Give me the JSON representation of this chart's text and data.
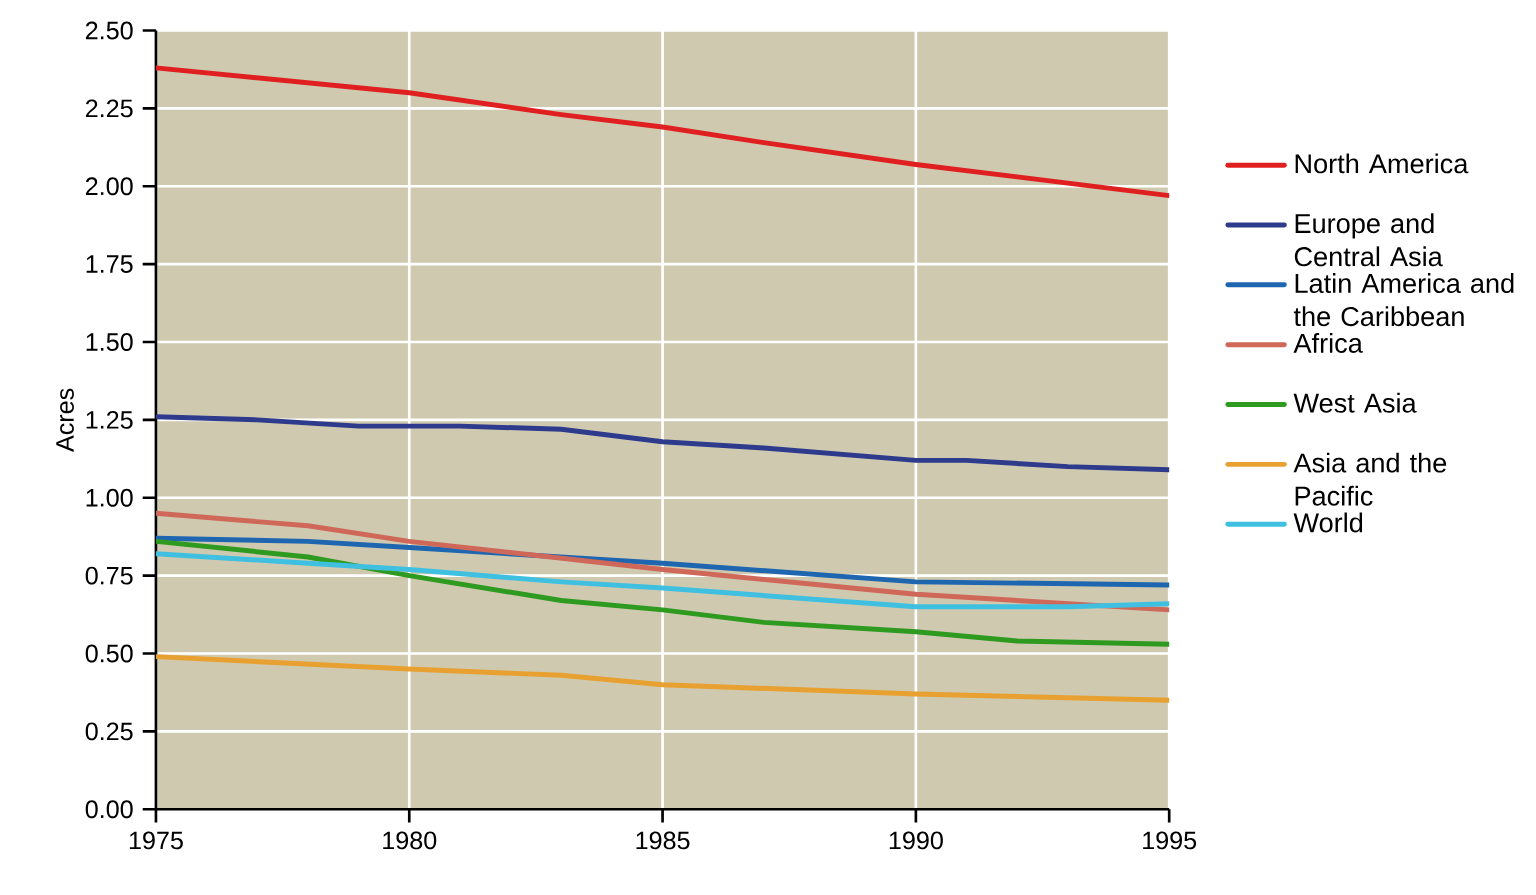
{
  "chart_data": {
    "type": "line",
    "ylabel": "Acres",
    "xlim": [
      1975,
      1995
    ],
    "xticks": [
      1975,
      1980,
      1985,
      1990,
      1995
    ],
    "ylim": [
      0,
      2.5
    ],
    "yticks": [
      {
        "value": 0,
        "label": "0.00"
      },
      {
        "value": 0.25,
        "label": "0.25"
      },
      {
        "value": 0.5,
        "label": "0.50"
      },
      {
        "value": 0.75,
        "label": "0.75"
      },
      {
        "value": 1,
        "label": "1.00"
      },
      {
        "value": 1.25,
        "label": "1.25"
      },
      {
        "value": 1.5,
        "label": "1.50"
      },
      {
        "value": 1.75,
        "label": "1.75"
      },
      {
        "value": 2,
        "label": "2.00"
      },
      {
        "value": 2.25,
        "label": "2.25"
      },
      {
        "value": 2.5,
        "label": "2.50"
      }
    ],
    "grid": true,
    "legend": "right",
    "marker": "none",
    "line_style": "solid",
    "series": [
      {
        "name": "North America",
        "color": "#e02020",
        "x": [
          1975,
          1980,
          1983,
          1985,
          1987,
          1990,
          1992,
          1995
        ],
        "values": [
          2.38,
          2.3,
          2.23,
          2.19,
          2.14,
          2.07,
          2.03,
          1.97
        ]
      },
      {
        "name": "Europe and Central Asia",
        "color": "#2e3a8c",
        "x": [
          1975,
          1977,
          1979,
          1981,
          1983,
          1985,
          1987,
          1990,
          1991,
          1993,
          1995
        ],
        "values": [
          1.26,
          1.25,
          1.23,
          1.23,
          1.22,
          1.18,
          1.16,
          1.12,
          1.12,
          1.1,
          1.09
        ]
      },
      {
        "name": "Latin America and the Caribbean",
        "color": "#1f66b0",
        "x": [
          1975,
          1978,
          1980,
          1985,
          1990,
          1995
        ],
        "values": [
          0.87,
          0.86,
          0.84,
          0.79,
          0.73,
          0.72
        ]
      },
      {
        "name": "Africa",
        "color": "#d0685a",
        "x": [
          1975,
          1978,
          1980,
          1985,
          1990,
          1995
        ],
        "values": [
          0.95,
          0.91,
          0.86,
          0.77,
          0.69,
          0.64
        ]
      },
      {
        "name": "West Asia",
        "color": "#2e9a20",
        "x": [
          1975,
          1978,
          1980,
          1983,
          1985,
          1987,
          1990,
          1992,
          1995
        ],
        "values": [
          0.86,
          0.81,
          0.75,
          0.67,
          0.64,
          0.6,
          0.57,
          0.54,
          0.53
        ]
      },
      {
        "name": "Asia and the Pacific",
        "color": "#e8a030",
        "x": [
          1975,
          1980,
          1983,
          1985,
          1990,
          1995
        ],
        "values": [
          0.49,
          0.45,
          0.43,
          0.4,
          0.37,
          0.35
        ]
      },
      {
        "name": "World",
        "color": "#40c0e0",
        "x": [
          1975,
          1978,
          1980,
          1983,
          1985,
          1990,
          1993,
          1995
        ],
        "values": [
          0.82,
          0.79,
          0.77,
          0.73,
          0.71,
          0.65,
          0.65,
          0.66
        ]
      }
    ]
  }
}
